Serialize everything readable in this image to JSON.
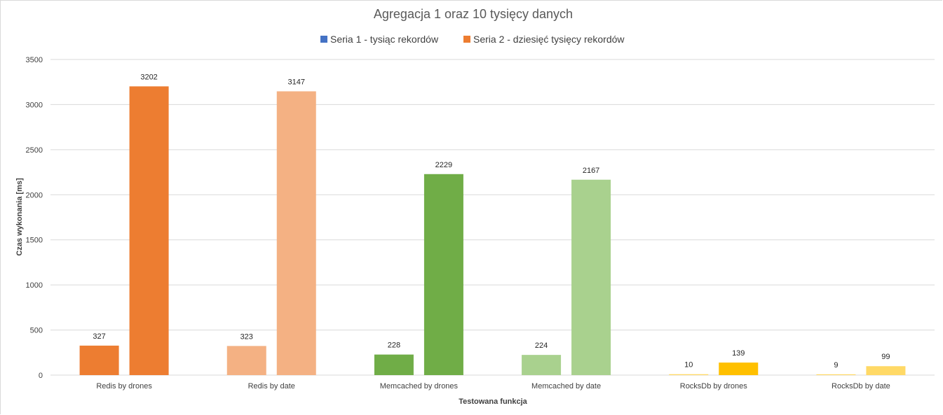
{
  "chart_data": {
    "type": "bar",
    "title": "Agregacja 1 oraz 10 tysięcy danych",
    "xlabel": "Testowana funkcja",
    "ylabel": "Czas wykonania [ms]",
    "ylim": [
      0,
      3500
    ],
    "yticks": [
      0,
      500,
      1000,
      1500,
      2000,
      2500,
      3000,
      3500
    ],
    "grid": true,
    "legend_position": "top",
    "categories": [
      "Redis by drones",
      "Redis by date",
      "Memcached by drones",
      "Memcached by date",
      "RocksDb by drones",
      "RocksDb by date"
    ],
    "series": [
      {
        "name": "Seria 1 - tysiąc rekordów",
        "legend_color": "#4472c4",
        "values": [
          327,
          323,
          228,
          224,
          10,
          9
        ]
      },
      {
        "name": "Seria 2 - dziesięć tysięcy rekordów",
        "legend_color": "#ed7d31",
        "values": [
          3202,
          3147,
          2229,
          2167,
          139,
          99
        ]
      }
    ],
    "bar_colors": [
      [
        "#ed7d31",
        "#ed7d31"
      ],
      [
        "#f4b183",
        "#f4b183"
      ],
      [
        "#70ad47",
        "#70ad47"
      ],
      [
        "#a9d18e",
        "#a9d18e"
      ],
      [
        "#ffd966",
        "#ffc000"
      ],
      [
        "#ffd966",
        "#ffd966"
      ]
    ]
  }
}
